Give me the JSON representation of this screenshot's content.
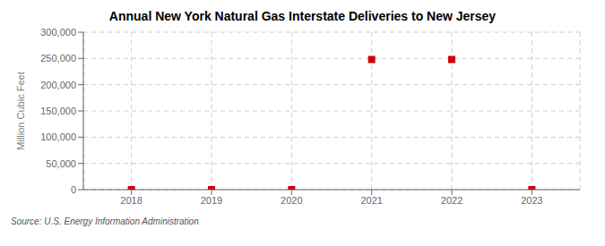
{
  "chart_data": {
    "type": "scatter",
    "title": "Annual New York Natural Gas Interstate Deliveries to New Jersey",
    "ylabel": "Million Cubic Feet",
    "annotations": [
      "Source: U.S. Energy Information Administration"
    ],
    "x": [
      2018,
      2019,
      2020,
      2021,
      2022,
      2023
    ],
    "values": [
      0,
      0,
      0,
      248000,
      248000,
      0
    ],
    "color": "#cc0000",
    "marker": "square",
    "xlim": [
      2017.4,
      2023.6
    ],
    "ylim": [
      0,
      300000
    ],
    "xticks": [
      2018,
      2019,
      2020,
      2021,
      2022,
      2023
    ],
    "yticks": [
      0,
      {
        "value": 50000,
        "label": "50,000"
      },
      {
        "value": 100000,
        "label": "100,000"
      },
      {
        "value": 150000,
        "label": "150,000"
      },
      {
        "value": 200000,
        "label": "200,000"
      },
      {
        "value": 250000,
        "label": "250,000"
      },
      {
        "value": 300000,
        "label": "300,000"
      }
    ],
    "grid": true
  }
}
